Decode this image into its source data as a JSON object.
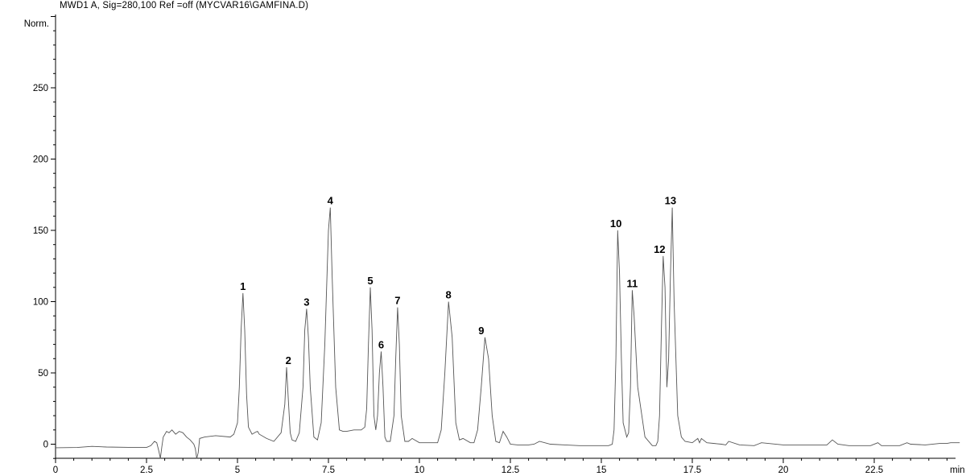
{
  "chart_data": {
    "type": "line",
    "title": "MWD1 A, Sig=280,100 Ref =off  (MYCVAR16\\GAMFINA.D)",
    "xlabel": "min",
    "ylabel": "Norm.",
    "xlim": [
      0,
      24.85
    ],
    "ylim": [
      -10,
      300
    ],
    "x_ticks": [
      "0",
      "2.5",
      "5",
      "7.5",
      "10",
      "12.5",
      "15",
      "17.5",
      "20",
      "22.5"
    ],
    "y_ticks": [
      "0",
      "50",
      "100",
      "150",
      "200",
      "250"
    ],
    "grid": false,
    "series": [
      {
        "color": "#555555",
        "x": [
          0,
          0.6,
          1.0,
          1.4,
          2.0,
          2.5,
          2.62,
          2.72,
          2.78,
          2.84,
          2.88,
          2.92,
          2.96,
          3.05,
          3.12,
          3.2,
          3.3,
          3.4,
          3.5,
          3.6,
          3.7,
          3.8,
          3.84,
          3.88,
          3.92,
          3.96,
          4.1,
          4.4,
          4.8,
          4.9,
          5.0,
          5.05,
          5.1,
          5.15,
          5.2,
          5.25,
          5.3,
          5.4,
          5.5,
          5.55,
          5.6,
          5.8,
          6.0,
          6.2,
          6.3,
          6.35,
          6.4,
          6.45,
          6.5,
          6.6,
          6.7,
          6.8,
          6.85,
          6.9,
          6.95,
          7.0,
          7.1,
          7.2,
          7.3,
          7.4,
          7.5,
          7.55,
          7.6,
          7.7,
          7.8,
          7.9,
          8.0,
          8.2,
          8.4,
          8.5,
          8.55,
          8.6,
          8.65,
          8.7,
          8.75,
          8.8,
          8.85,
          8.9,
          8.95,
          9.0,
          9.05,
          9.1,
          9.2,
          9.3,
          9.35,
          9.4,
          9.45,
          9.5,
          9.6,
          9.7,
          9.8,
          10.0,
          10.3,
          10.5,
          10.6,
          10.7,
          10.8,
          10.9,
          11.0,
          11.1,
          11.2,
          11.4,
          11.5,
          11.6,
          11.7,
          11.8,
          11.9,
          12.0,
          12.1,
          12.2,
          12.25,
          12.3,
          12.4,
          12.5,
          12.7,
          13.0,
          13.15,
          13.3,
          13.6,
          14.0,
          14.4,
          14.8,
          15.1,
          15.2,
          15.3,
          15.35,
          15.4,
          15.45,
          15.5,
          15.55,
          15.6,
          15.7,
          15.75,
          15.8,
          15.85,
          15.9,
          16.0,
          16.2,
          16.4,
          16.5,
          16.55,
          16.6,
          16.65,
          16.7,
          16.75,
          16.8,
          16.85,
          16.9,
          16.95,
          17.0,
          17.1,
          17.2,
          17.3,
          17.5,
          17.65,
          17.7,
          17.75,
          17.9,
          18.3,
          18.42,
          18.5,
          18.8,
          19.2,
          19.3,
          19.4,
          20.0,
          20.6,
          21.2,
          21.35,
          21.5,
          21.8,
          22.4,
          22.6,
          22.7,
          23.2,
          23.4,
          23.5,
          23.9,
          24.3,
          24.5,
          24.6,
          24.85
        ],
        "y": [
          -2.5,
          -2.3,
          -1.5,
          -2.0,
          -2.2,
          -2.3,
          -1.0,
          2.0,
          1.0,
          -5.0,
          -10.0,
          -2.0,
          5.0,
          9.0,
          8.0,
          10.0,
          7.0,
          9.0,
          8.0,
          5.0,
          3.0,
          0.0,
          -3.0,
          -10.0,
          -6.0,
          4.0,
          5.0,
          6.0,
          5.0,
          7.0,
          15.0,
          40.0,
          80.0,
          106.0,
          80.0,
          35.0,
          12.0,
          7.0,
          8.5,
          9.0,
          7.0,
          4.0,
          2.0,
          8.0,
          28.0,
          54.0,
          30.0,
          8.0,
          3.0,
          2.0,
          8.0,
          40.0,
          80.0,
          95.0,
          75.0,
          40.0,
          5.0,
          3.0,
          15.0,
          70.0,
          150.0,
          166.0,
          120.0,
          40.0,
          10.0,
          9.0,
          9.0,
          10.0,
          10.0,
          12.0,
          25.0,
          70.0,
          110.0,
          80.0,
          20.0,
          10.0,
          20.0,
          50.0,
          65.0,
          40.0,
          5.0,
          2.0,
          2.0,
          20.0,
          60.0,
          96.0,
          70.0,
          20.0,
          2.0,
          2.0,
          4.0,
          1.0,
          1.0,
          1.0,
          10.0,
          50.0,
          100.0,
          75.0,
          15.0,
          3.0,
          4.0,
          1.0,
          1.0,
          10.0,
          40.0,
          75.0,
          60.0,
          20.0,
          2.0,
          1.0,
          5.0,
          9.0,
          5.0,
          0.0,
          -0.5,
          -0.5,
          0.0,
          2.0,
          0.0,
          -0.5,
          -1.0,
          -1.0,
          -1.0,
          -1.0,
          0.0,
          10.0,
          60.0,
          150.0,
          120.0,
          60.0,
          15.0,
          5.0,
          8.0,
          40.0,
          108.0,
          90.0,
          40.0,
          5.0,
          -1.0,
          -1.0,
          2.0,
          20.0,
          80.0,
          132.0,
          110.0,
          40.0,
          60.0,
          120.0,
          166.0,
          100.0,
          20.0,
          5.0,
          2.0,
          1.0,
          4.0,
          1.0,
          4.0,
          1.0,
          0.0,
          -0.5,
          2.0,
          -0.5,
          -1.0,
          0.0,
          1.0,
          -0.5,
          -0.5,
          -0.5,
          3.0,
          0.0,
          -1.0,
          -1.0,
          1.0,
          -1.0,
          -1.0,
          1.0,
          0.0,
          -0.5,
          0.5,
          0.5,
          1.0,
          1.0
        ]
      }
    ],
    "peaks": [
      {
        "label": "1",
        "x": 5.15,
        "y": 106
      },
      {
        "label": "2",
        "x": 6.4,
        "y": 54
      },
      {
        "label": "3",
        "x": 6.9,
        "y": 95
      },
      {
        "label": "4",
        "x": 7.55,
        "y": 166
      },
      {
        "label": "5",
        "x": 8.65,
        "y": 110
      },
      {
        "label": "6",
        "x": 8.95,
        "y": 65
      },
      {
        "label": "7",
        "x": 9.4,
        "y": 96
      },
      {
        "label": "8",
        "x": 10.8,
        "y": 100
      },
      {
        "label": "9",
        "x": 11.7,
        "y": 75
      },
      {
        "label": "10",
        "x": 15.4,
        "y": 150
      },
      {
        "label": "11",
        "x": 15.85,
        "y": 108
      },
      {
        "label": "12",
        "x": 16.6,
        "y": 132
      },
      {
        "label": "13",
        "x": 16.9,
        "y": 166
      }
    ]
  }
}
